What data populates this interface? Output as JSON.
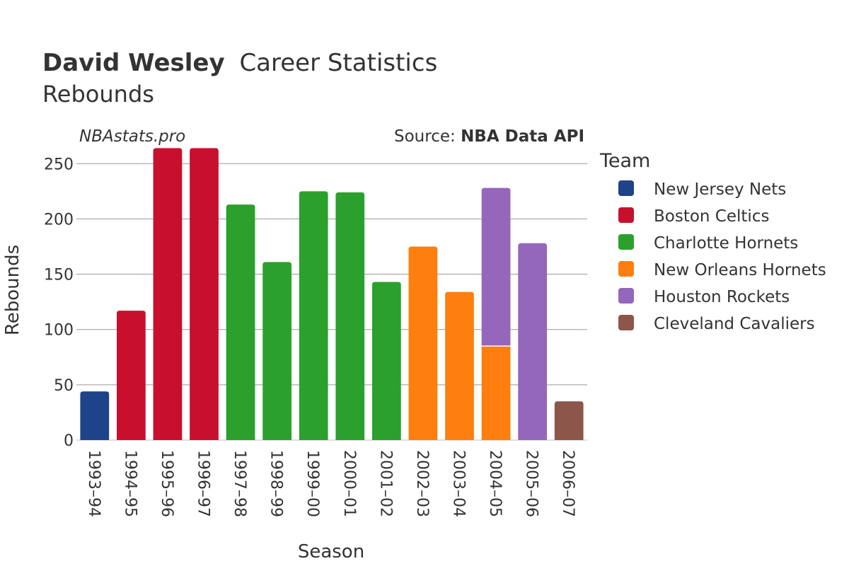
{
  "header": {
    "title_name": "David Wesley",
    "title_rest": "Career Statistics",
    "subtitle": "Rebounds",
    "watermark": "NBAstats.pro",
    "source_prefix": "Source: ",
    "source_name": "NBA Data API"
  },
  "legend": {
    "title": "Team",
    "placement": "right"
  },
  "chart_data": {
    "type": "bar",
    "stacked": true,
    "xlabel": "Season",
    "ylabel": "Rebounds",
    "ylim": [
      0,
      270
    ],
    "yticks": [
      0,
      50,
      100,
      150,
      200,
      250
    ],
    "grid": true,
    "categories": [
      "1993–94",
      "1994–95",
      "1995–96",
      "1996–97",
      "1997–98",
      "1998–99",
      "1999–00",
      "2000–01",
      "2001–02",
      "2002–03",
      "2003–04",
      "2004–05",
      "2005–06",
      "2006–07"
    ],
    "series": [
      {
        "name": "New Jersey Nets",
        "color": "#1f4388",
        "values": [
          44,
          0,
          0,
          0,
          0,
          0,
          0,
          0,
          0,
          0,
          0,
          0,
          0,
          0
        ]
      },
      {
        "name": "Boston Celtics",
        "color": "#c8102e",
        "values": [
          0,
          117,
          264,
          264,
          0,
          0,
          0,
          0,
          0,
          0,
          0,
          0,
          0,
          0
        ]
      },
      {
        "name": "Charlotte Hornets",
        "color": "#2ca02c",
        "values": [
          0,
          0,
          0,
          0,
          213,
          161,
          225,
          224,
          143,
          0,
          0,
          0,
          0,
          0
        ]
      },
      {
        "name": "New Orleans Hornets",
        "color": "#ff7f0e",
        "values": [
          0,
          0,
          0,
          0,
          0,
          0,
          0,
          0,
          0,
          175,
          134,
          85,
          0,
          0
        ]
      },
      {
        "name": "Houston Rockets",
        "color": "#9467bd",
        "values": [
          0,
          0,
          0,
          0,
          0,
          0,
          0,
          0,
          0,
          0,
          0,
          143,
          178,
          0
        ]
      },
      {
        "name": "Cleveland Cavaliers",
        "color": "#8c564b",
        "values": [
          0,
          0,
          0,
          0,
          0,
          0,
          0,
          0,
          0,
          0,
          0,
          0,
          0,
          35
        ]
      }
    ]
  }
}
